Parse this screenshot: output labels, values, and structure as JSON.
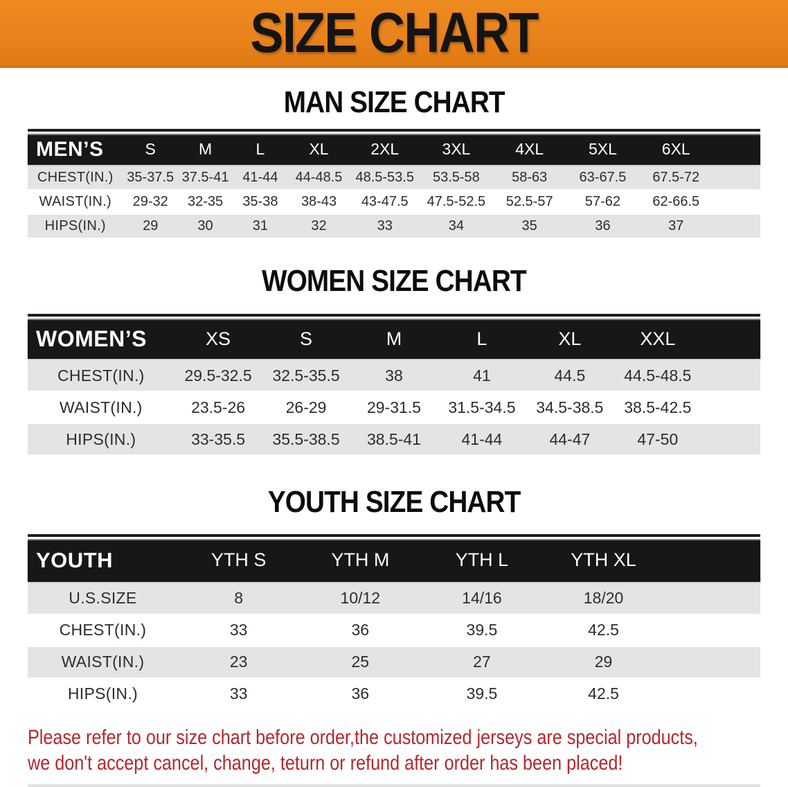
{
  "banner": {
    "title": "SIZE CHART"
  },
  "sections": [
    {
      "heading": "MAN SIZE CHART",
      "label": "MEN’S",
      "columns": [
        "S",
        "M",
        "L",
        "XL",
        "2XL",
        "3XL",
        "4XL",
        "5XL",
        "6XL"
      ],
      "rows": [
        {
          "label": "CHEST(IN.)",
          "values": [
            "35-37.5",
            "37.5-41",
            "41-44",
            "44-48.5",
            "48.5-53.5",
            "53.5-58",
            "58-63",
            "63-67.5",
            "67.5-72"
          ]
        },
        {
          "label": "WAIST(IN.)",
          "values": [
            "29-32",
            "32-35",
            "35-38",
            "38-43",
            "43-47.5",
            "47.5-52.5",
            "52.5-57",
            "57-62",
            "62-66.5"
          ]
        },
        {
          "label": "HIPS(IN.)",
          "values": [
            "29",
            "30",
            "31",
            "32",
            "33",
            "34",
            "35",
            "36",
            "37"
          ]
        }
      ]
    },
    {
      "heading": "WOMEN SIZE CHART",
      "label": "WOMEN’S",
      "columns": [
        "XS",
        "S",
        "M",
        "L",
        "XL",
        "XXL"
      ],
      "rows": [
        {
          "label": "CHEST(IN.)",
          "values": [
            "29.5-32.5",
            "32.5-35.5",
            "38",
            "41",
            "44.5",
            "44.5-48.5"
          ]
        },
        {
          "label": "WAIST(IN.)",
          "values": [
            "23.5-26",
            "26-29",
            "29-31.5",
            "31.5-34.5",
            "34.5-38.5",
            "38.5-42.5"
          ]
        },
        {
          "label": "HIPS(IN.)",
          "values": [
            "33-35.5",
            "35.5-38.5",
            "38.5-41",
            "41-44",
            "44-47",
            "47-50"
          ]
        }
      ]
    },
    {
      "heading": "YOUTH SIZE CHART",
      "label": "YOUTH",
      "columns": [
        "YTH S",
        "YTH M",
        "YTH L",
        "YTH XL"
      ],
      "rows": [
        {
          "label": "U.S.SIZE",
          "values": [
            "8",
            "10/12",
            "14/16",
            "18/20"
          ]
        },
        {
          "label": "CHEST(IN.)",
          "values": [
            "33",
            "36",
            "39.5",
            "42.5"
          ]
        },
        {
          "label": "WAIST(IN.)",
          "values": [
            "23",
            "25",
            "27",
            "29"
          ]
        },
        {
          "label": "HIPS(IN.)",
          "values": [
            "33",
            "36",
            "39.5",
            "42.5"
          ]
        }
      ]
    }
  ],
  "footer": {
    "line1": "Please refer to our size chart before order,the customized jerseys are special products,",
    "line2": "we don't accept cancel, change, teturn or refund after order has been placed!"
  },
  "colors": {
    "banner_orange": "#E8831D",
    "header_black": "#171717",
    "row_gray": "#E4E4E4",
    "footer_red": "#B3272B"
  }
}
